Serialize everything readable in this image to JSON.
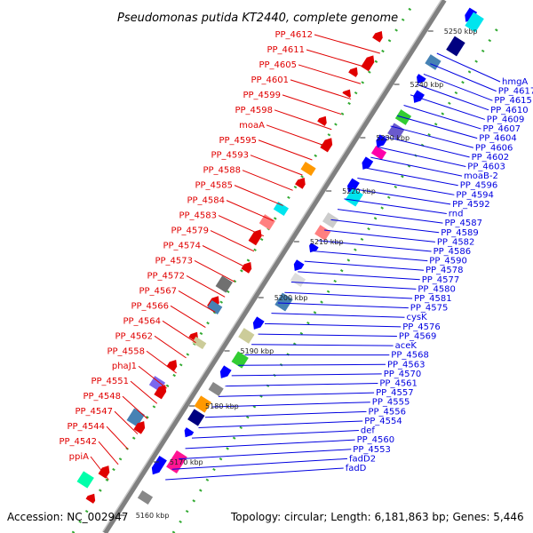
{
  "title": "Pseudomonas putida KT2440, complete genome",
  "footer": {
    "accession": "Accession: NC_002947",
    "topology": "Topology: circular; Length: 6,181,863 bp; Genes: 5,446"
  },
  "colors": {
    "forward_label": "#e00000",
    "reverse_label": "#0000e0",
    "axis": "#808080",
    "dots": "#33aa33"
  },
  "ticks": [
    "5250 kbp",
    "5240 kbp",
    "5230 kbp",
    "5220 kbp",
    "5210 kbp",
    "5200 kbp",
    "5190 kbp",
    "5180 kbp",
    "5170 kbp",
    "5160 kbp"
  ],
  "left_labels": [
    "PP_4612",
    "PP_4611",
    "PP_4605",
    "PP_4601",
    "PP_4599",
    "PP_4598",
    "moaA",
    "PP_4595",
    "PP_4593",
    "PP_4588",
    "PP_4585",
    "PP_4584",
    "PP_4583",
    "PP_4579",
    "PP_4574",
    "PP_4573",
    "PP_4572",
    "PP_4567",
    "PP_4566",
    "PP_4564",
    "PP_4562",
    "PP_4558",
    "phaJ1",
    "PP_4551",
    "PP_4548",
    "PP_4547",
    "PP_4544",
    "PP_4542",
    "ppiA"
  ],
  "right_labels": [
    "hmgA",
    "PP_4617",
    "PP_4615",
    "PP_4610",
    "PP_4609",
    "PP_4607",
    "PP_4604",
    "PP_4606",
    "PP_4602",
    "PP_4603",
    "moaB-2",
    "PP_4596",
    "PP_4594",
    "PP_4592",
    "rnd",
    "PP_4587",
    "PP_4589",
    "PP_4582",
    "PP_4586",
    "PP_4590",
    "PP_4578",
    "PP_4577",
    "PP_4580",
    "PP_4581",
    "PP_4575",
    "cysK",
    "PP_4576",
    "PP_4569",
    "aceK",
    "PP_4568",
    "PP_4563",
    "PP_4570",
    "PP_4561",
    "PP_4557",
    "PP_4555",
    "PP_4556",
    "PP_4554",
    "def",
    "PP_4560",
    "PP_4553",
    "fadD2",
    "fadD"
  ]
}
